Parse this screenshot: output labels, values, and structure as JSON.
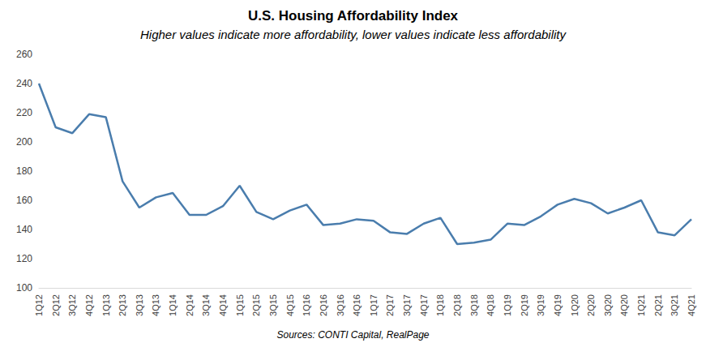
{
  "chart_data": {
    "type": "line",
    "title": "U.S. Housing Affordability Index",
    "subtitle": "Higher values indicate more affordability, lower values indicate less affordability",
    "source": "Sources: CONTI Capital, RealPage",
    "categories": [
      "1Q12",
      "2Q12",
      "3Q12",
      "4Q12",
      "1Q13",
      "2Q13",
      "3Q13",
      "4Q13",
      "1Q14",
      "2Q14",
      "3Q14",
      "4Q14",
      "1Q15",
      "2Q15",
      "3Q15",
      "4Q15",
      "1Q16",
      "2Q16",
      "3Q16",
      "4Q16",
      "1Q17",
      "2Q17",
      "3Q17",
      "4Q17",
      "1Q18",
      "2Q18",
      "3Q18",
      "4Q18",
      "1Q19",
      "2Q19",
      "3Q19",
      "4Q19",
      "1Q20",
      "2Q20",
      "3Q20",
      "4Q20",
      "1Q21",
      "2Q21",
      "3Q21",
      "4Q21"
    ],
    "values": [
      240,
      210,
      206,
      219,
      217,
      173,
      155,
      162,
      165,
      150,
      150,
      156,
      170,
      152,
      147,
      153,
      157,
      143,
      144,
      147,
      146,
      138,
      137,
      144,
      148,
      130,
      131,
      133,
      144,
      143,
      149,
      157,
      161,
      158,
      151,
      155,
      160,
      138,
      136,
      147
    ],
    "color": "#4a7dad",
    "ylim": [
      100,
      260
    ],
    "yticks": [
      100,
      120,
      140,
      160,
      180,
      200,
      220,
      240,
      260
    ],
    "grid": false
  }
}
